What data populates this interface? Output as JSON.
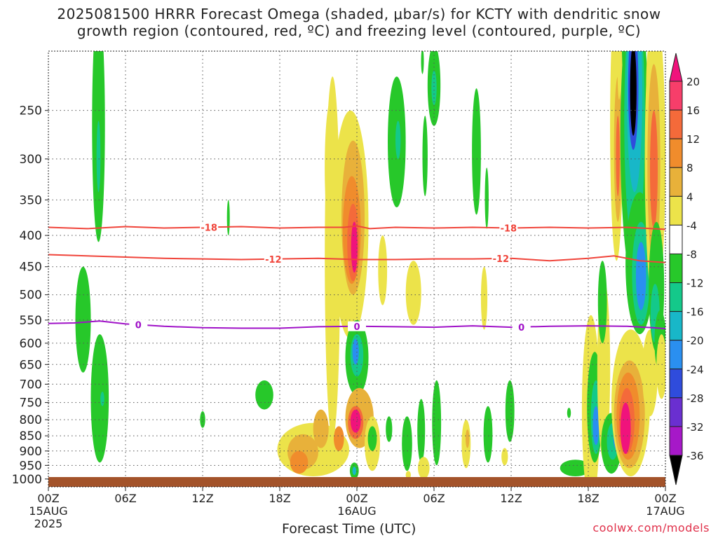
{
  "title_line1": "2025081500 HRRR Forecast Omega (shaded, μbar/s) for KCTY with dendritic snow",
  "title_line2": "growth region (contoured, red, ºC) and freezing level (contoured, purple, ºC)",
  "credit": "coolwx.com/models",
  "chart_data": {
    "type": "heatmap",
    "title": "2025081500 HRRR Forecast Omega (shaded, μbar/s) for KCTY with dendritic snow growth region (contoured, red, ºC) and freezing level (contoured, purple, ºC)",
    "xlabel": "Forecast Time (UTC)",
    "ylabel": "",
    "x_range_hours": [
      0,
      48
    ],
    "x_ticks": [
      {
        "h": 0,
        "label": "00Z",
        "sub": [
          "15AUG",
          "2025"
        ]
      },
      {
        "h": 6,
        "label": "06Z",
        "sub": []
      },
      {
        "h": 12,
        "label": "12Z",
        "sub": []
      },
      {
        "h": 18,
        "label": "18Z",
        "sub": []
      },
      {
        "h": 24,
        "label": "00Z",
        "sub": [
          "16AUG"
        ]
      },
      {
        "h": 30,
        "label": "06Z",
        "sub": []
      },
      {
        "h": 36,
        "label": "12Z",
        "sub": []
      },
      {
        "h": 42,
        "label": "18Z",
        "sub": []
      },
      {
        "h": 48,
        "label": "00Z",
        "sub": [
          "17AUG"
        ]
      }
    ],
    "y_scale": "log-pressure",
    "y_range_hPa": [
      1030,
      200
    ],
    "y_ticks": [
      250,
      300,
      350,
      400,
      450,
      500,
      550,
      600,
      650,
      700,
      750,
      800,
      850,
      900,
      950,
      1000
    ],
    "grid": true,
    "colorbar": {
      "labels": [
        20,
        16,
        12,
        8,
        4,
        -4,
        -8,
        -12,
        -16,
        -20,
        -24,
        -28,
        -32,
        -36
      ],
      "colors": [
        "#f73e6a",
        "#f46a3a",
        "#f08c2c",
        "#e8b13a",
        "#ece34a",
        "#ffffff",
        "#27c82a",
        "#14c98a",
        "#18b7c8",
        "#2a8ff0",
        "#2f4cdc",
        "#6a2fd0",
        "#a618c8",
        "#a8a8a8"
      ],
      "top_color": "#f0137c",
      "bottom_color": "#000000"
    },
    "contours": [
      {
        "label": "-18",
        "color": "#f0443a",
        "points": [
          [
            0,
            388
          ],
          [
            3,
            390
          ],
          [
            6,
            387
          ],
          [
            9,
            389
          ],
          [
            12,
            388
          ],
          [
            15,
            387
          ],
          [
            18,
            389
          ],
          [
            21,
            388
          ],
          [
            23,
            388
          ],
          [
            24,
            386
          ],
          [
            25,
            390
          ],
          [
            27,
            388
          ],
          [
            30,
            389
          ],
          [
            33,
            388
          ],
          [
            36,
            389
          ],
          [
            39,
            388
          ],
          [
            42,
            389
          ],
          [
            45,
            388
          ],
          [
            47,
            390
          ],
          [
            48,
            391
          ]
        ],
        "label_at": [
          12.5,
          35.8
        ]
      },
      {
        "label": "-12",
        "color": "#f0443a",
        "points": [
          [
            0,
            430
          ],
          [
            3,
            432
          ],
          [
            6,
            434
          ],
          [
            9,
            436
          ],
          [
            12,
            437
          ],
          [
            15,
            438
          ],
          [
            18,
            437
          ],
          [
            21,
            436
          ],
          [
            24,
            438
          ],
          [
            27,
            438
          ],
          [
            30,
            437
          ],
          [
            33,
            437
          ],
          [
            36,
            436
          ],
          [
            39,
            440
          ],
          [
            42,
            436
          ],
          [
            44,
            432
          ],
          [
            46,
            440
          ],
          [
            48,
            443
          ]
        ],
        "label_at": [
          17.5,
          35.2
        ]
      },
      {
        "label": "0",
        "color": "#a012c8",
        "points": [
          [
            0,
            557
          ],
          [
            2,
            556
          ],
          [
            4,
            552
          ],
          [
            6,
            558
          ],
          [
            9,
            563
          ],
          [
            12,
            566
          ],
          [
            15,
            567
          ],
          [
            18,
            567
          ],
          [
            21,
            564
          ],
          [
            24,
            563
          ],
          [
            27,
            564
          ],
          [
            30,
            565
          ],
          [
            33,
            562
          ],
          [
            36,
            565
          ],
          [
            39,
            563
          ],
          [
            42,
            562
          ],
          [
            45,
            563
          ],
          [
            47,
            566
          ],
          [
            48,
            568
          ]
        ],
        "label_at": [
          7,
          24,
          36.8
        ]
      }
    ],
    "omega_blobs": [
      {
        "h": 3.9,
        "p": 290,
        "dh": 0.5,
        "dp": 120,
        "v": -8
      },
      {
        "h": 3.9,
        "p": 300,
        "dh": 0.15,
        "dp": 40,
        "v": -12
      },
      {
        "h": 2.7,
        "p": 560,
        "dh": 0.6,
        "dp": 110,
        "v": -8
      },
      {
        "h": 4.0,
        "p": 760,
        "dh": 0.7,
        "dp": 180,
        "v": -8
      },
      {
        "h": 4.2,
        "p": 740,
        "dh": 0.15,
        "dp": 20,
        "v": -12
      },
      {
        "h": 14.0,
        "p": 375,
        "dh": 0.08,
        "dp": 25,
        "v": -8
      },
      {
        "h": 12.0,
        "p": 800,
        "dh": 0.2,
        "dp": 25,
        "v": -8
      },
      {
        "h": 16.8,
        "p": 730,
        "dh": 0.7,
        "dp": 40,
        "v": -8
      },
      {
        "h": 20.6,
        "p": 900,
        "dh": 2.8,
        "dp": 90,
        "v": 4
      },
      {
        "h": 19.8,
        "p": 905,
        "dh": 1.2,
        "dp": 60,
        "v": 8
      },
      {
        "h": 19.5,
        "p": 940,
        "dh": 0.7,
        "dp": 40,
        "v": 12
      },
      {
        "h": 21.2,
        "p": 830,
        "dh": 0.6,
        "dp": 60,
        "v": 8
      },
      {
        "h": 22.6,
        "p": 860,
        "dh": 0.4,
        "dp": 40,
        "v": 12
      },
      {
        "h": 22.0,
        "p": 320,
        "dh": 0.5,
        "dp": 80,
        "v": 4
      },
      {
        "h": 22.1,
        "p": 540,
        "dh": 0.6,
        "dp": 320,
        "v": 4
      },
      {
        "h": 23.5,
        "p": 420,
        "dh": 1.4,
        "dp": 170,
        "v": 4
      },
      {
        "h": 23.7,
        "p": 390,
        "dh": 0.9,
        "dp": 110,
        "v": 8
      },
      {
        "h": 23.6,
        "p": 400,
        "dh": 0.7,
        "dp": 80,
        "v": 12
      },
      {
        "h": 23.7,
        "p": 415,
        "dh": 0.45,
        "dp": 60,
        "v": 16
      },
      {
        "h": 23.8,
        "p": 420,
        "dh": 0.25,
        "dp": 40,
        "v": 24
      },
      {
        "h": 24.0,
        "p": 640,
        "dh": 0.9,
        "dp": 90,
        "v": -8
      },
      {
        "h": 24.0,
        "p": 630,
        "dh": 0.5,
        "dp": 50,
        "v": -12
      },
      {
        "h": 23.9,
        "p": 620,
        "dh": 0.25,
        "dp": 30,
        "v": -20
      },
      {
        "h": 24.2,
        "p": 800,
        "dh": 1.1,
        "dp": 90,
        "v": 8
      },
      {
        "h": 23.9,
        "p": 810,
        "dh": 0.6,
        "dp": 50,
        "v": 16
      },
      {
        "h": 23.9,
        "p": 805,
        "dh": 0.4,
        "dp": 35,
        "v": 24
      },
      {
        "h": 23.8,
        "p": 970,
        "dh": 0.35,
        "dp": 30,
        "v": -8
      },
      {
        "h": 23.8,
        "p": 970,
        "dh": 0.15,
        "dp": 15,
        "v": -16
      },
      {
        "h": 25.2,
        "p": 880,
        "dh": 0.6,
        "dp": 90,
        "v": 4
      },
      {
        "h": 26.5,
        "p": 830,
        "dh": 0.25,
        "dp": 40,
        "v": -8
      },
      {
        "h": 25.2,
        "p": 860,
        "dh": 0.35,
        "dp": 40,
        "v": -8
      },
      {
        "h": 27.9,
        "p": 880,
        "dh": 0.4,
        "dp": 90,
        "v": -8
      },
      {
        "h": 29.0,
        "p": 840,
        "dh": 0.3,
        "dp": 100,
        "v": -8
      },
      {
        "h": 30.2,
        "p": 820,
        "dh": 0.35,
        "dp": 130,
        "v": -8
      },
      {
        "h": 29.2,
        "p": 960,
        "dh": 0.45,
        "dp": 40,
        "v": 4
      },
      {
        "h": 26.0,
        "p": 460,
        "dh": 0.35,
        "dp": 60,
        "v": 4
      },
      {
        "h": 28.4,
        "p": 500,
        "dh": 0.6,
        "dp": 60,
        "v": 4
      },
      {
        "h": 28.0,
        "p": 985,
        "dh": 0.2,
        "dp": 15,
        "v": 4
      },
      {
        "h": 27.1,
        "p": 290,
        "dh": 0.7,
        "dp": 70,
        "v": -8
      },
      {
        "h": 27.2,
        "p": 280,
        "dh": 0.2,
        "dp": 20,
        "v": -12
      },
      {
        "h": 29.3,
        "p": 300,
        "dh": 0.2,
        "dp": 45,
        "v": -8
      },
      {
        "h": 29.1,
        "p": 208,
        "dh": 0.1,
        "dp": 10,
        "v": -8
      },
      {
        "h": 30.0,
        "p": 230,
        "dh": 0.5,
        "dp": 35,
        "v": -8
      },
      {
        "h": 30.0,
        "p": 230,
        "dh": 0.2,
        "dp": 15,
        "v": -12
      },
      {
        "h": 32.5,
        "p": 880,
        "dh": 0.35,
        "dp": 80,
        "v": 4
      },
      {
        "h": 32.6,
        "p": 860,
        "dh": 0.15,
        "dp": 30,
        "v": 8
      },
      {
        "h": 34.2,
        "p": 850,
        "dh": 0.35,
        "dp": 90,
        "v": -8
      },
      {
        "h": 33.9,
        "p": 510,
        "dh": 0.25,
        "dp": 60,
        "v": 4
      },
      {
        "h": 35.9,
        "p": 780,
        "dh": 0.35,
        "dp": 90,
        "v": -8
      },
      {
        "h": 35.5,
        "p": 920,
        "dh": 0.25,
        "dp": 30,
        "v": 4
      },
      {
        "h": 36.0,
        "p": 730,
        "dh": 0.12,
        "dp": 15,
        "v": -8
      },
      {
        "h": 33.3,
        "p": 300,
        "dh": 0.35,
        "dp": 70,
        "v": -8
      },
      {
        "h": 34.1,
        "p": 350,
        "dh": 0.15,
        "dp": 40,
        "v": -8
      },
      {
        "h": 40.5,
        "p": 780,
        "dh": 0.15,
        "dp": 15,
        "v": -8
      },
      {
        "h": 41.0,
        "p": 960,
        "dh": 1.2,
        "dp": 30,
        "v": -8
      },
      {
        "h": 42.2,
        "p": 820,
        "dh": 0.7,
        "dp": 280,
        "v": 4
      },
      {
        "h": 42.5,
        "p": 780,
        "dh": 0.6,
        "dp": 160,
        "v": -8
      },
      {
        "h": 42.6,
        "p": 800,
        "dh": 0.4,
        "dp": 110,
        "v": -12
      },
      {
        "h": 42.6,
        "p": 820,
        "dh": 0.25,
        "dp": 60,
        "v": -20
      },
      {
        "h": 43.2,
        "p": 700,
        "dh": 0.5,
        "dp": 230,
        "v": 4
      },
      {
        "h": 43.1,
        "p": 520,
        "dh": 0.35,
        "dp": 80,
        "v": -8
      },
      {
        "h": 43.8,
        "p": 880,
        "dh": 0.8,
        "dp": 100,
        "v": -8
      },
      {
        "h": 43.9,
        "p": 870,
        "dh": 0.45,
        "dp": 60,
        "v": -12
      },
      {
        "h": 44.2,
        "p": 860,
        "dh": 0.25,
        "dp": 35,
        "v": -20
      },
      {
        "h": 45.3,
        "p": 780,
        "dh": 1.5,
        "dp": 210,
        "v": 4
      },
      {
        "h": 45.2,
        "p": 800,
        "dh": 1.2,
        "dp": 160,
        "v": 8
      },
      {
        "h": 45.1,
        "p": 800,
        "dh": 0.9,
        "dp": 130,
        "v": 12
      },
      {
        "h": 45.0,
        "p": 810,
        "dh": 0.6,
        "dp": 100,
        "v": 16
      },
      {
        "h": 44.9,
        "p": 830,
        "dh": 0.4,
        "dp": 80,
        "v": 24
      },
      {
        "h": 46.8,
        "p": 680,
        "dh": 0.6,
        "dp": 110,
        "v": 4
      },
      {
        "h": 44.8,
        "p": 230,
        "dh": 0.7,
        "dp": 60,
        "v": -8
      },
      {
        "h": 44.2,
        "p": 300,
        "dh": 0.5,
        "dp": 140,
        "v": 4
      },
      {
        "h": 44.3,
        "p": 300,
        "dh": 0.3,
        "dp": 80,
        "v": 8
      },
      {
        "h": 44.3,
        "p": 300,
        "dh": 0.15,
        "dp": 45,
        "v": 16
      },
      {
        "h": 44.4,
        "p": 200,
        "dh": 0.15,
        "dp": 40,
        "v": 4
      },
      {
        "h": 45.6,
        "p": 280,
        "dh": 1.1,
        "dp": 200,
        "v": -8
      },
      {
        "h": 45.6,
        "p": 270,
        "dh": 0.8,
        "dp": 150,
        "v": -12
      },
      {
        "h": 45.6,
        "p": 250,
        "dh": 0.6,
        "dp": 90,
        "v": -16
      },
      {
        "h": 45.5,
        "p": 235,
        "dh": 0.4,
        "dp": 55,
        "v": -24
      },
      {
        "h": 45.5,
        "p": 235,
        "dh": 0.25,
        "dp": 40,
        "v": -36
      },
      {
        "h": 46.0,
        "p": 460,
        "dh": 1.1,
        "dp": 120,
        "v": -8
      },
      {
        "h": 46.1,
        "p": 470,
        "dh": 0.7,
        "dp": 90,
        "v": -12
      },
      {
        "h": 46.1,
        "p": 470,
        "dh": 0.4,
        "dp": 60,
        "v": -20
      },
      {
        "h": 46.9,
        "p": 230,
        "dh": 0.4,
        "dp": 40,
        "v": 4
      },
      {
        "h": 47.2,
        "p": 350,
        "dh": 0.8,
        "dp": 180,
        "v": 4
      },
      {
        "h": 47.1,
        "p": 330,
        "dh": 0.5,
        "dp": 120,
        "v": 8
      },
      {
        "h": 47.1,
        "p": 320,
        "dh": 0.3,
        "dp": 70,
        "v": 16
      },
      {
        "h": 47.3,
        "p": 500,
        "dh": 0.6,
        "dp": 120,
        "v": -8
      },
      {
        "h": 47.2,
        "p": 540,
        "dh": 0.35,
        "dp": 60,
        "v": -12
      },
      {
        "h": 47.6,
        "p": 600,
        "dh": 0.45,
        "dp": 70,
        "v": -8
      },
      {
        "h": 47.7,
        "p": 660,
        "dh": 0.4,
        "dp": 80,
        "v": 4
      }
    ]
  }
}
